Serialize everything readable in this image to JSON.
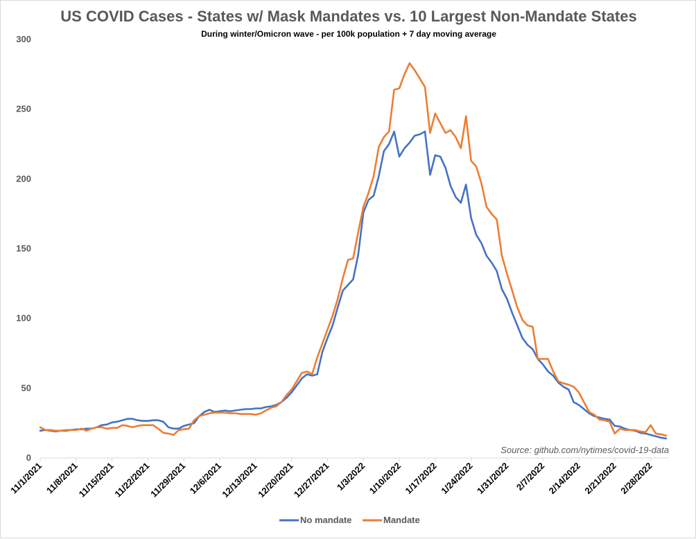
{
  "chart_data": {
    "type": "line",
    "title": "US COVID Cases - States w/ Mask Mandates vs. 10 Largest Non-Mandate States",
    "subtitle": "During winter/Omicron wave - per 100k population + 7 day moving average",
    "source": "Source: github.com/nytimes/covid-19-data",
    "xlabel": "",
    "ylabel": "",
    "ylim": [
      0,
      300
    ],
    "yticks": [
      0,
      50,
      100,
      150,
      200,
      250,
      300
    ],
    "grid": false,
    "legend": "bottom",
    "x_start": "11/1/2021",
    "x_tick_labels": [
      "11/1/2021",
      "11/8/2021",
      "11/15/2021",
      "11/22/2021",
      "11/29/2021",
      "12/6/2021",
      "12/13/2021",
      "12/20/2021",
      "12/27/2021",
      "1/3/2022",
      "1/10/2022",
      "1/17/2022",
      "1/24/2022",
      "1/31/2022",
      "2/7/2022",
      "2/14/2022",
      "2/21/2022",
      "2/28/2022"
    ],
    "series": [
      {
        "name": "No mandate",
        "color": "#4472c4",
        "values": [
          19.5,
          20,
          19.5,
          19,
          19.5,
          19.5,
          20,
          20.5,
          20.5,
          21,
          21,
          22,
          23.5,
          24,
          25.5,
          26,
          27,
          28,
          28,
          27,
          26.5,
          26.5,
          27,
          27,
          26,
          22,
          21,
          21,
          23,
          24,
          25,
          30,
          33,
          34.5,
          33,
          33.5,
          34,
          33.5,
          34,
          34.5,
          35,
          35,
          35.5,
          35.5,
          36.5,
          37,
          38,
          40,
          43,
          47,
          52,
          57,
          60,
          59,
          60,
          76,
          86,
          95,
          108,
          120,
          124,
          128,
          146,
          176,
          185,
          188,
          202,
          220,
          225,
          234,
          216,
          222,
          226,
          231,
          232,
          234,
          203,
          217,
          216,
          208,
          195,
          187,
          183,
          196,
          172,
          160,
          154,
          145,
          140,
          134,
          121,
          114,
          104,
          95,
          86,
          81,
          78,
          71,
          67,
          62,
          59,
          54,
          51,
          49,
          40,
          38,
          35,
          32,
          30,
          29,
          28,
          27.5,
          23,
          22.5,
          21,
          20,
          19.5,
          18,
          17.5,
          16.5,
          15.5,
          14.5,
          14
        ]
      },
      {
        "name": "Mandate",
        "color": "#ed7d31",
        "values": [
          22,
          20,
          20,
          19.5,
          19.5,
          20,
          20,
          20,
          21,
          19.5,
          21,
          22,
          22,
          21,
          21.5,
          21.5,
          23.5,
          23,
          22,
          23,
          23.5,
          23.5,
          23.5,
          21,
          18,
          17.5,
          16.5,
          20,
          20.5,
          21,
          27,
          30,
          31,
          32,
          32.5,
          32.5,
          32.5,
          32,
          32,
          31.5,
          31.5,
          31.5,
          31,
          32,
          34,
          36,
          37,
          40,
          45,
          49,
          55,
          61,
          62,
          60,
          72,
          82,
          92,
          102,
          114,
          129,
          142,
          143,
          162,
          180,
          190,
          202,
          223,
          230,
          234,
          264,
          265,
          275,
          283,
          278,
          272,
          266,
          233,
          247,
          240,
          233,
          235,
          230,
          222,
          245,
          213,
          209,
          197,
          180,
          175,
          171,
          145,
          132,
          120,
          108,
          99,
          95,
          94,
          71,
          71,
          71,
          62,
          55,
          53.5,
          52.5,
          51,
          47,
          40,
          33,
          31,
          27.5,
          27,
          26,
          17.5,
          21,
          20,
          20,
          20,
          19,
          18.5,
          23.5,
          17.5,
          17,
          16
        ]
      }
    ]
  }
}
